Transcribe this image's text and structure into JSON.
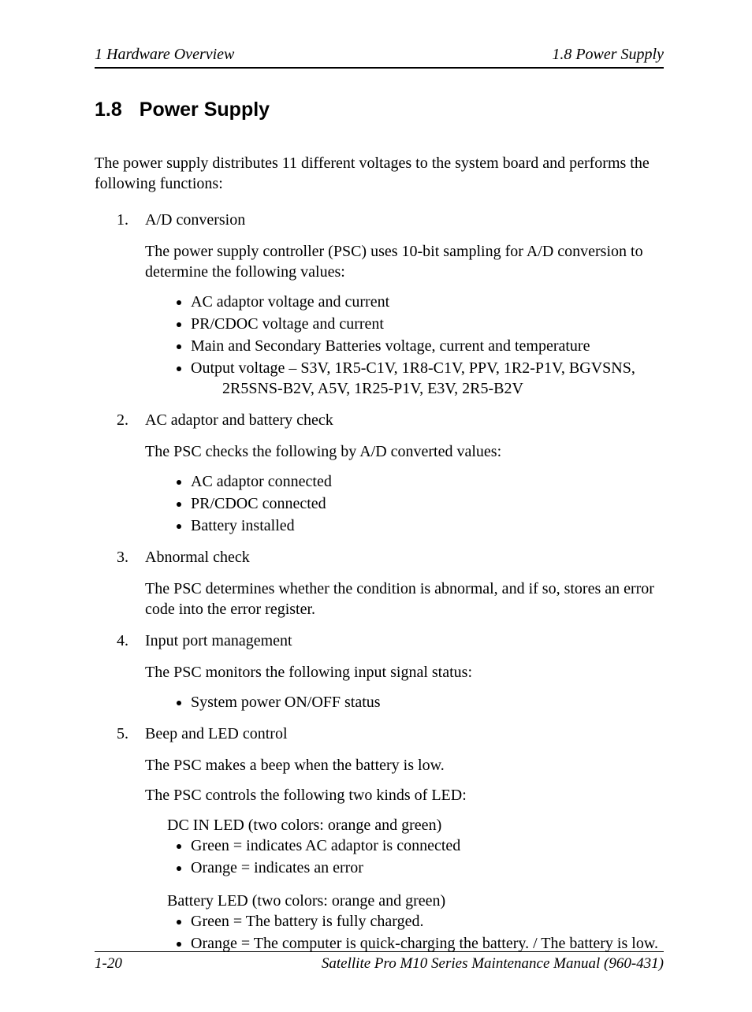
{
  "header": {
    "left": "1  Hardware Overview",
    "right": "1.8  Power Supply"
  },
  "heading": {
    "number": "1.8",
    "title": "Power Supply"
  },
  "intro": "The power supply distributes 11 different voltages to the system board and performs the following functions:",
  "items": [
    {
      "title": "A/D conversion",
      "paras": [
        "The power supply controller (PSC) uses 10-bit sampling for A/D conversion to determine the following values:"
      ],
      "bullets": [
        "AC adaptor voltage and current",
        "PR/CDOC voltage and current",
        "Main and Secondary Batteries voltage, current and temperature",
        "Output voltage – S3V, 1R5-C1V, 1R8-C1V, PPV, 1R2-P1V, BGVSNS, 2R5SNS-B2V, A5V, 1R25-P1V, E3V, 2R5-B2V"
      ],
      "bullet_cont": [
        "",
        "",
        "",
        "indent"
      ]
    },
    {
      "title": "AC adaptor and battery check",
      "paras": [
        "The PSC checks the following by A/D converted values:"
      ],
      "bullets": [
        "AC adaptor connected",
        "PR/CDOC connected",
        "Battery installed"
      ]
    },
    {
      "title": "Abnormal check",
      "paras": [
        "The PSC determines whether the condition is abnormal, and if so, stores an error code into the error register."
      ]
    },
    {
      "title": "Input port management",
      "paras": [
        "The PSC monitors the following input signal status:"
      ],
      "bullets": [
        "System power ON/OFF status"
      ]
    },
    {
      "title": "Beep and LED control",
      "paras": [
        "The PSC makes a beep when the battery is low.",
        "The PSC controls the following two kinds of LED:"
      ],
      "groups": [
        {
          "label": "DC IN LED (two colors: orange and green)",
          "bullets": [
            "Green = indicates AC adaptor is connected",
            "Orange = indicates an error"
          ]
        },
        {
          "label": "Battery LED (two colors: orange and green)",
          "bullets": [
            "Green = The battery is fully charged.",
            "Orange = The computer is quick-charging the battery. / The battery is low."
          ]
        }
      ]
    }
  ],
  "footer": {
    "left": "1-20",
    "right": "Satellite Pro M10 Series Maintenance Manual (960-431)"
  }
}
